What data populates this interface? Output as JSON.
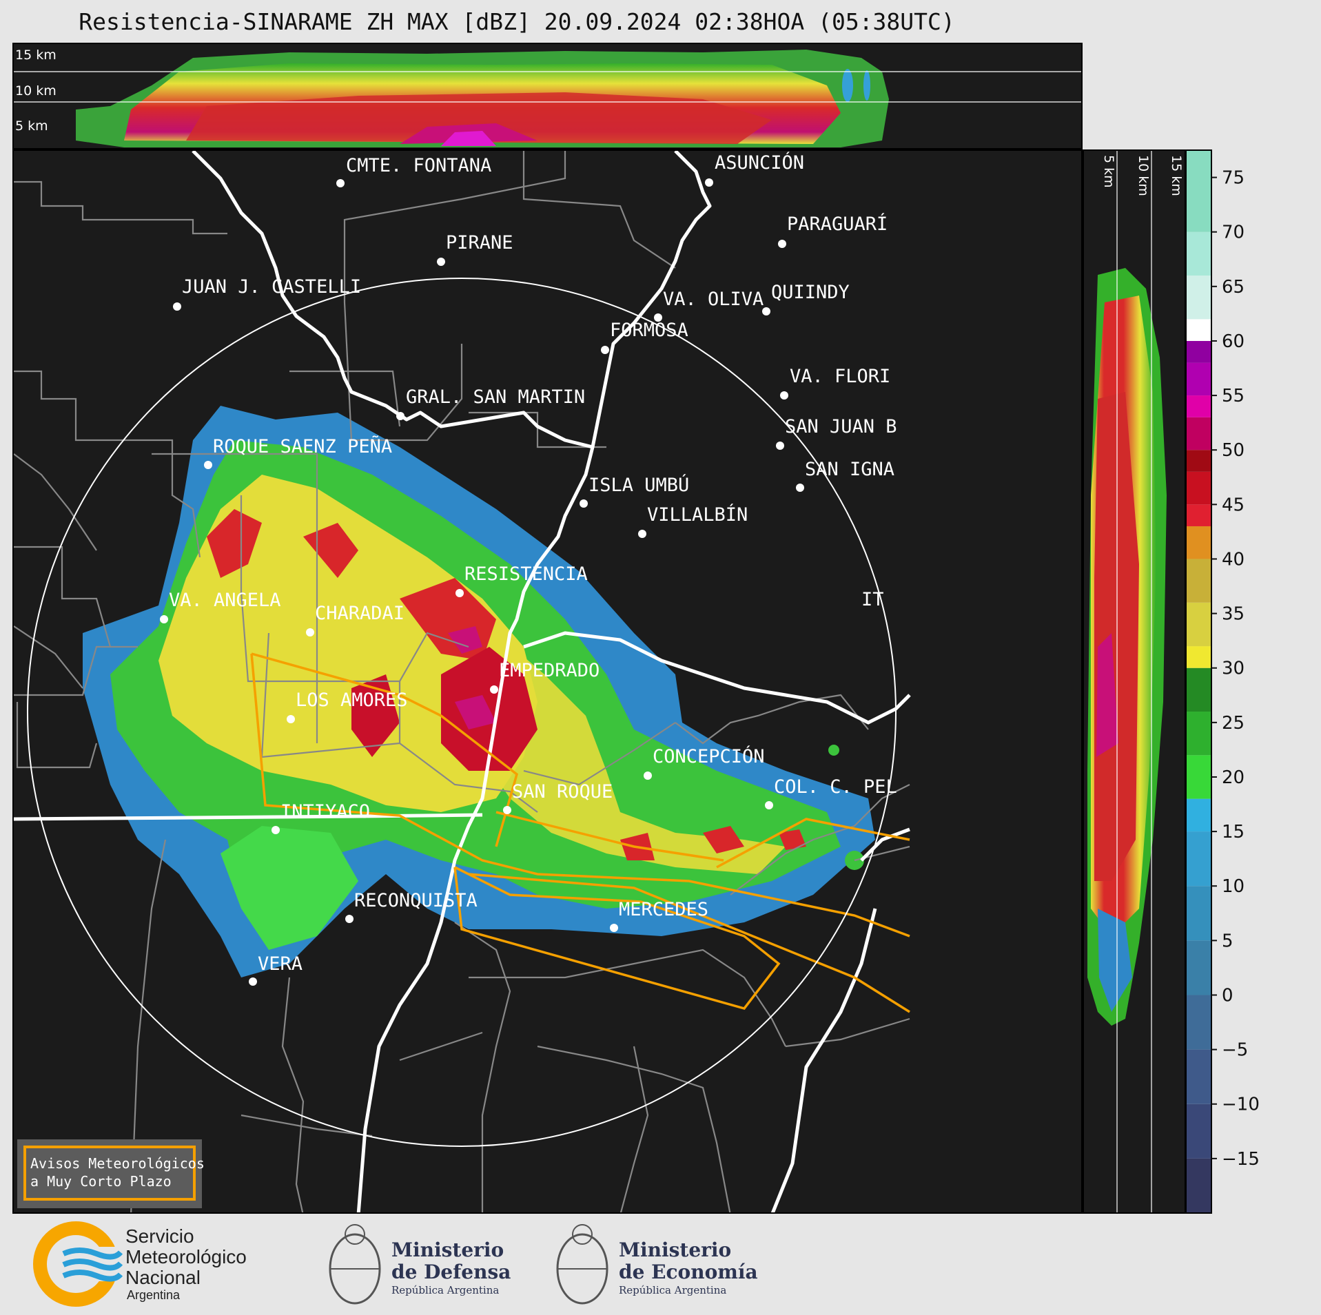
{
  "title": "Resistencia-SINARAME ZH MAX [dBZ] 20.09.2024 02:38HOA (05:38UTC)",
  "top_profile": {
    "height_labels": [
      "15 km",
      "10 km",
      "5 km"
    ]
  },
  "side_profile": {
    "height_labels": [
      "5 km",
      "10 km",
      "15 km"
    ]
  },
  "cities": [
    "CMTE. FONTANA",
    "ASUNCIÓN",
    "PARAGUARÍ",
    "PIRANE",
    "JUAN J. CASTELLI",
    "VA. OLIVA",
    "QUIINDY",
    "FORMOSA",
    "VA. FLORI",
    "GRAL. SAN MARTIN",
    "SAN JUAN B",
    "ROQUE SAENZ PEÑA",
    "SAN IGNA",
    "ISLA UMBÚ",
    "VILLALBÍN",
    "RESISTENCIA",
    "VA. ANGELA",
    "CHARADAI",
    "IT",
    "EMPEDRADO",
    "LOS AMORES",
    "CONCEPCIÓN",
    "SAN ROQUE",
    "COL. C. PEL",
    "INTIYACO",
    "RECONQUISTA",
    "MERCEDES",
    "VERA"
  ],
  "warning_box": {
    "line1": "Avisos Meteorológicos",
    "line2": "a Muy Corto Plazo"
  },
  "colorbar": {
    "unit": "dBZ",
    "ticks": [
      "75",
      "70",
      "65",
      "60",
      "55",
      "50",
      "45",
      "40",
      "35",
      "30",
      "25",
      "20",
      "15",
      "10",
      "5",
      "0",
      "−5",
      "−10",
      "−15"
    ]
  },
  "logos": {
    "smn_line1": "Servicio",
    "smn_line2": "Meteorológico",
    "smn_line3": "Nacional",
    "smn_line4": "Argentina",
    "defensa_line1": "Ministerio",
    "defensa_line2": "de Defensa",
    "defensa_line3": "República Argentina",
    "economia_line1": "Ministerio",
    "economia_line2": "de Economía",
    "economia_line3": "República Argentina"
  },
  "colors": {
    "map_background": "#1b1b1b",
    "range_ring": "#ffffff",
    "warning_outline": "#f5a000",
    "river": "#ffffff",
    "border": "#888888",
    "smn_orange": "#f7a600",
    "smn_blue": "#2a9fd8"
  }
}
